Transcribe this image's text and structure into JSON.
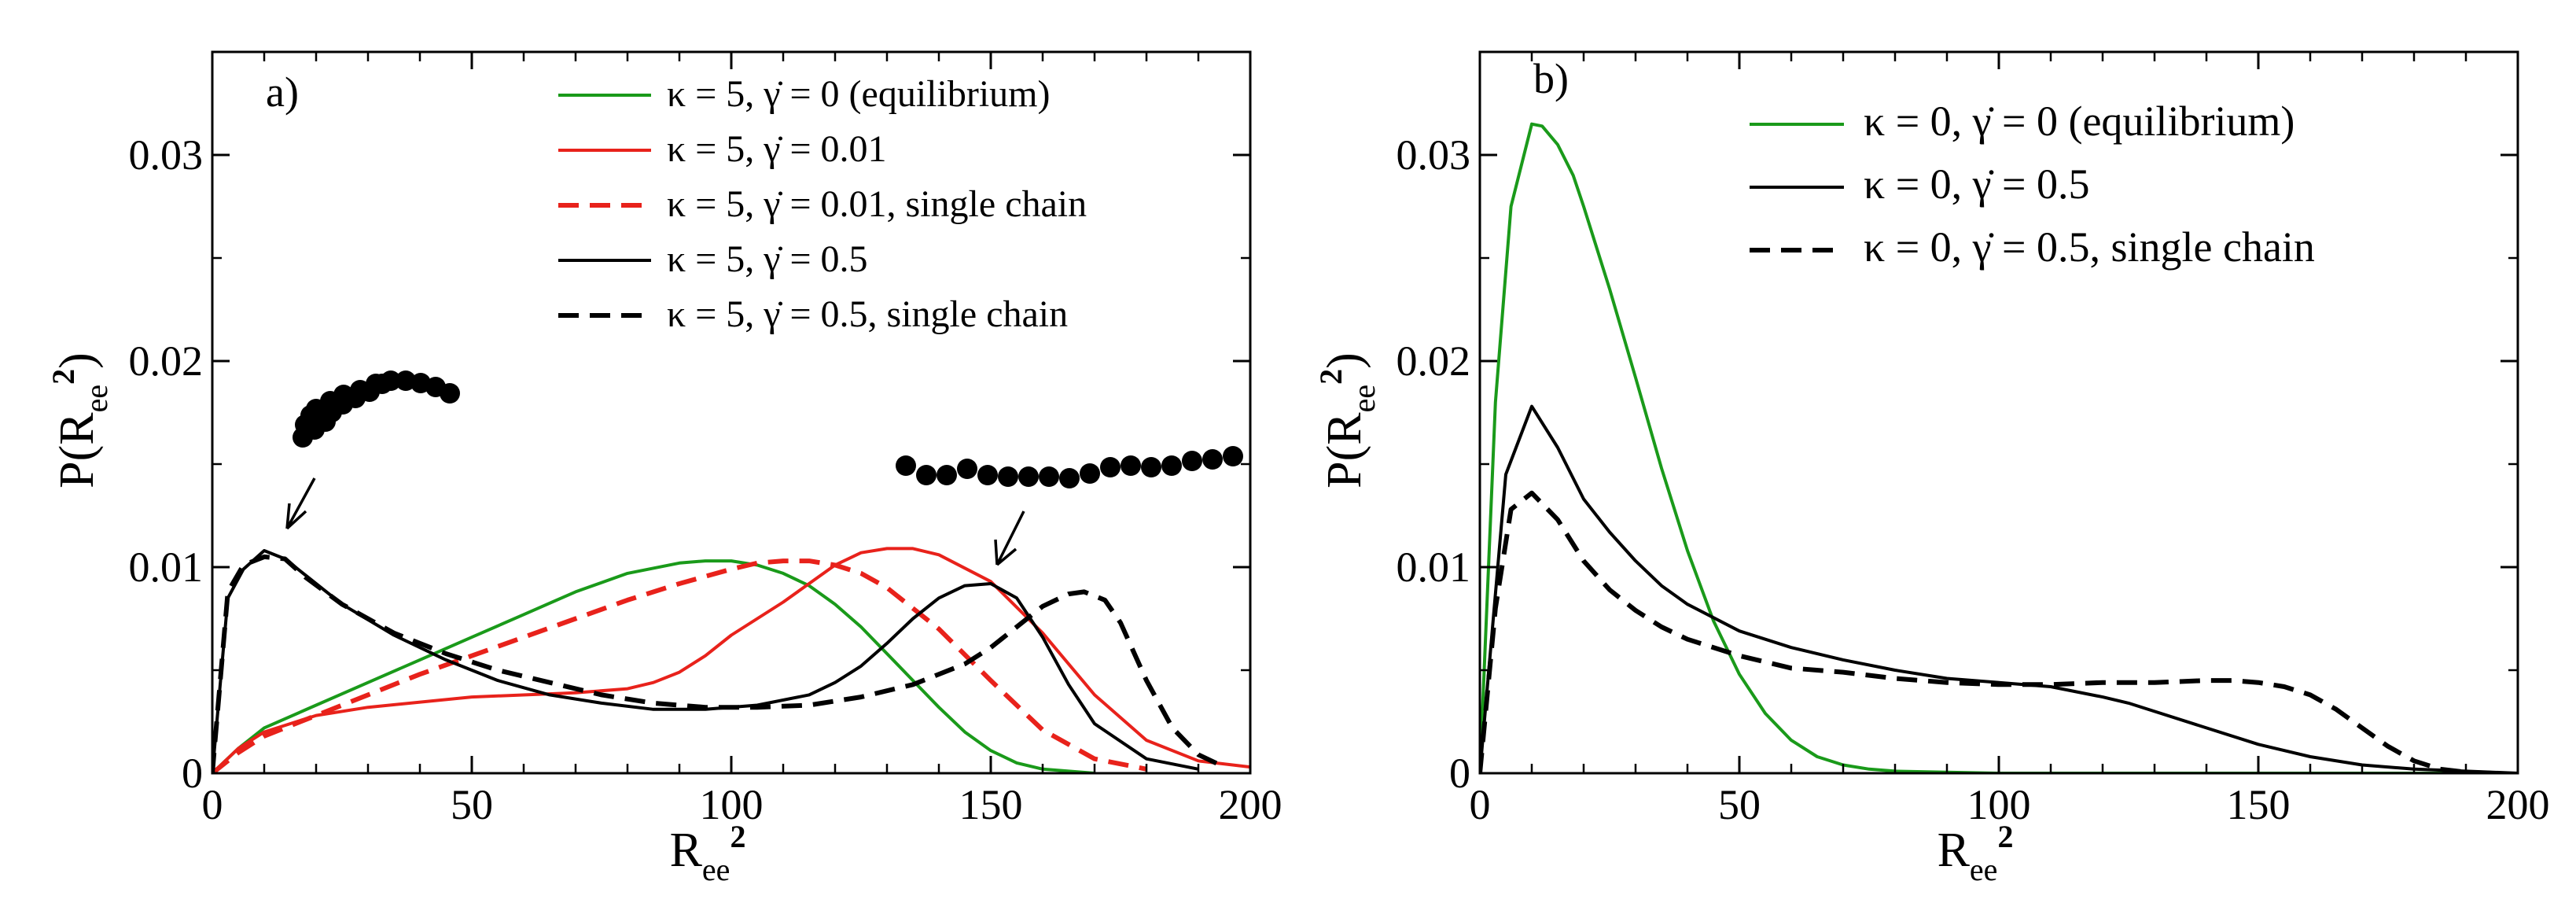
{
  "colors": {
    "green": "#1a9a1a",
    "red": "#e8221b",
    "black": "#000000"
  },
  "chart_data": [
    {
      "type": "line",
      "panel_label": "a)",
      "xlabel": {
        "main": "R",
        "sub": "ee",
        "sup": "2"
      },
      "ylabel": {
        "prefix": "P(R",
        "sub": "ee",
        "sup": "2",
        "suffix": ")"
      },
      "xlim": [
        0,
        200
      ],
      "ylim": [
        0,
        0.035
      ],
      "xticks": [
        0,
        50,
        100,
        150,
        200
      ],
      "xtick_labels": [
        "0",
        "50",
        "100",
        "150",
        "200"
      ],
      "yticks": [
        0,
        0.01,
        0.02,
        0.03
      ],
      "ytick_labels": [
        "0",
        "0.01",
        "0.02",
        "0.03"
      ],
      "legend_position": "top-right",
      "series": [
        {
          "name": "κ = 5, γ̇ = 0 (equilibrium)",
          "color": "green",
          "dash": "solid",
          "x": [
            0,
            5,
            10,
            20,
            30,
            40,
            50,
            60,
            70,
            80,
            90,
            95,
            100,
            105,
            110,
            115,
            120,
            125,
            130,
            135,
            140,
            145,
            150,
            155,
            160,
            165,
            170
          ],
          "y": [
            0,
            0.0012,
            0.0022,
            0.0033,
            0.0044,
            0.0055,
            0.0066,
            0.0077,
            0.0088,
            0.0097,
            0.0102,
            0.0103,
            0.0103,
            0.0101,
            0.0097,
            0.0091,
            0.0082,
            0.0071,
            0.0058,
            0.0045,
            0.0032,
            0.002,
            0.0011,
            0.0005,
            0.0002,
            0.0001,
            0
          ]
        },
        {
          "name": "κ = 5, γ̇ = 0.01",
          "color": "red",
          "dash": "solid",
          "x": [
            0,
            5,
            10,
            20,
            30,
            50,
            70,
            80,
            85,
            90,
            95,
            100,
            110,
            120,
            125,
            130,
            135,
            140,
            150,
            160,
            170,
            180,
            190,
            200
          ],
          "y": [
            0,
            0.0012,
            0.002,
            0.0028,
            0.0032,
            0.0037,
            0.0039,
            0.0041,
            0.0044,
            0.0049,
            0.0057,
            0.0067,
            0.0083,
            0.0101,
            0.0107,
            0.0109,
            0.0109,
            0.0106,
            0.0093,
            0.0068,
            0.0038,
            0.0016,
            0.0006,
            0.0003
          ]
        },
        {
          "name": "κ = 5, γ̇ = 0.01, single chain",
          "color": "red",
          "dash": "dashed",
          "x": [
            0,
            5,
            10,
            20,
            30,
            40,
            50,
            60,
            70,
            80,
            90,
            100,
            105,
            110,
            115,
            120,
            125,
            130,
            140,
            150,
            160,
            170,
            180
          ],
          "y": [
            0,
            0.001,
            0.0018,
            0.0028,
            0.0038,
            0.0048,
            0.0057,
            0.0066,
            0.0075,
            0.0084,
            0.0092,
            0.0099,
            0.0102,
            0.0103,
            0.0103,
            0.0101,
            0.0097,
            0.009,
            0.007,
            0.0045,
            0.0021,
            0.0007,
            0.0002
          ]
        },
        {
          "name": "κ = 5, γ̇ = 0.5",
          "color": "black",
          "dash": "solid",
          "x": [
            0,
            3,
            6,
            10,
            14,
            18,
            25,
            35,
            45,
            55,
            65,
            75,
            85,
            95,
            105,
            115,
            120,
            125,
            130,
            135,
            140,
            145,
            150,
            155,
            160,
            165,
            170,
            180,
            190
          ],
          "y": [
            0,
            0.0085,
            0.0099,
            0.0108,
            0.0104,
            0.0096,
            0.0082,
            0.0067,
            0.0055,
            0.0045,
            0.0038,
            0.0034,
            0.0031,
            0.0031,
            0.0033,
            0.0038,
            0.0044,
            0.0052,
            0.0063,
            0.0075,
            0.0085,
            0.0091,
            0.0092,
            0.0085,
            0.0066,
            0.0043,
            0.0024,
            0.0007,
            0.0002
          ]
        },
        {
          "name": "κ = 5, γ̇ = 0.5, single chain",
          "color": "black",
          "dash": "dashed",
          "x": [
            0,
            3,
            6,
            10,
            14,
            18,
            25,
            35,
            45,
            55,
            65,
            75,
            85,
            95,
            105,
            115,
            125,
            135,
            145,
            150,
            155,
            160,
            165,
            168,
            172,
            175,
            180,
            185,
            190,
            195
          ],
          "y": [
            0,
            0.0088,
            0.0101,
            0.0105,
            0.0104,
            0.0095,
            0.0082,
            0.0068,
            0.0058,
            0.005,
            0.0044,
            0.0038,
            0.0034,
            0.0032,
            0.0032,
            0.0033,
            0.0037,
            0.0043,
            0.0053,
            0.0061,
            0.0071,
            0.0081,
            0.0087,
            0.0088,
            0.0084,
            0.0073,
            0.0045,
            0.0022,
            0.0009,
            0.0003
          ]
        }
      ]
    },
    {
      "type": "line",
      "panel_label": "b)",
      "xlabel": {
        "main": "R",
        "sub": "ee",
        "sup": "2"
      },
      "ylabel": {
        "prefix": "P(R",
        "sub": "ee",
        "sup": "2",
        "suffix": ")"
      },
      "xlim": [
        0,
        200
      ],
      "ylim": [
        0,
        0.035
      ],
      "xticks": [
        0,
        50,
        100,
        150,
        200
      ],
      "xtick_labels": [
        "0",
        "50",
        "100",
        "150",
        "200"
      ],
      "yticks": [
        0,
        0.01,
        0.02,
        0.03
      ],
      "ytick_labels": [
        "0",
        "0.01",
        "0.02",
        "0.03"
      ],
      "legend_position": "top-right",
      "series": [
        {
          "name": "κ = 0, γ̇ = 0 (equilibrium)",
          "color": "green",
          "dash": "solid",
          "x": [
            0,
            3,
            6,
            10,
            12,
            15,
            18,
            20,
            25,
            30,
            35,
            40,
            45,
            50,
            55,
            60,
            65,
            70,
            75,
            80,
            90,
            100,
            150,
            200
          ],
          "y": [
            0,
            0.018,
            0.0275,
            0.0315,
            0.0314,
            0.0305,
            0.029,
            0.0275,
            0.0235,
            0.0192,
            0.0148,
            0.0108,
            0.0074,
            0.0048,
            0.0029,
            0.0016,
            0.0008,
            0.0004,
            0.0002,
            0.0001,
            5e-05,
            0,
            0,
            0
          ]
        },
        {
          "name": "κ = 0, γ̇ = 0.5",
          "color": "black",
          "dash": "solid",
          "x": [
            0,
            5,
            10,
            15,
            20,
            25,
            30,
            35,
            40,
            50,
            60,
            70,
            80,
            90,
            100,
            110,
            120,
            125,
            130,
            140,
            150,
            160,
            170,
            180,
            190,
            200
          ],
          "y": [
            0,
            0.0145,
            0.0178,
            0.0158,
            0.0133,
            0.0117,
            0.0103,
            0.0091,
            0.0082,
            0.0069,
            0.0061,
            0.0055,
            0.005,
            0.0046,
            0.0044,
            0.0042,
            0.0037,
            0.0034,
            0.003,
            0.0022,
            0.0014,
            0.0008,
            0.0004,
            0.0002,
            0.0001,
            0
          ]
        },
        {
          "name": "κ = 0, γ̇ = 0.5, single chain",
          "color": "black",
          "dash": "dashed",
          "x": [
            0,
            3,
            6,
            10,
            15,
            20,
            25,
            30,
            35,
            40,
            50,
            60,
            70,
            80,
            90,
            100,
            110,
            120,
            130,
            140,
            145,
            150,
            155,
            160,
            165,
            170,
            175,
            180,
            185,
            190,
            195
          ],
          "y": [
            0,
            0.008,
            0.0128,
            0.0136,
            0.0123,
            0.0103,
            0.0089,
            0.0079,
            0.0071,
            0.0065,
            0.0057,
            0.0051,
            0.0049,
            0.0046,
            0.0044,
            0.0043,
            0.0043,
            0.0044,
            0.0044,
            0.0045,
            0.0045,
            0.0044,
            0.0042,
            0.0038,
            0.0031,
            0.0022,
            0.0013,
            0.0006,
            0.0002,
            5e-05,
            0
          ]
        }
      ]
    }
  ]
}
